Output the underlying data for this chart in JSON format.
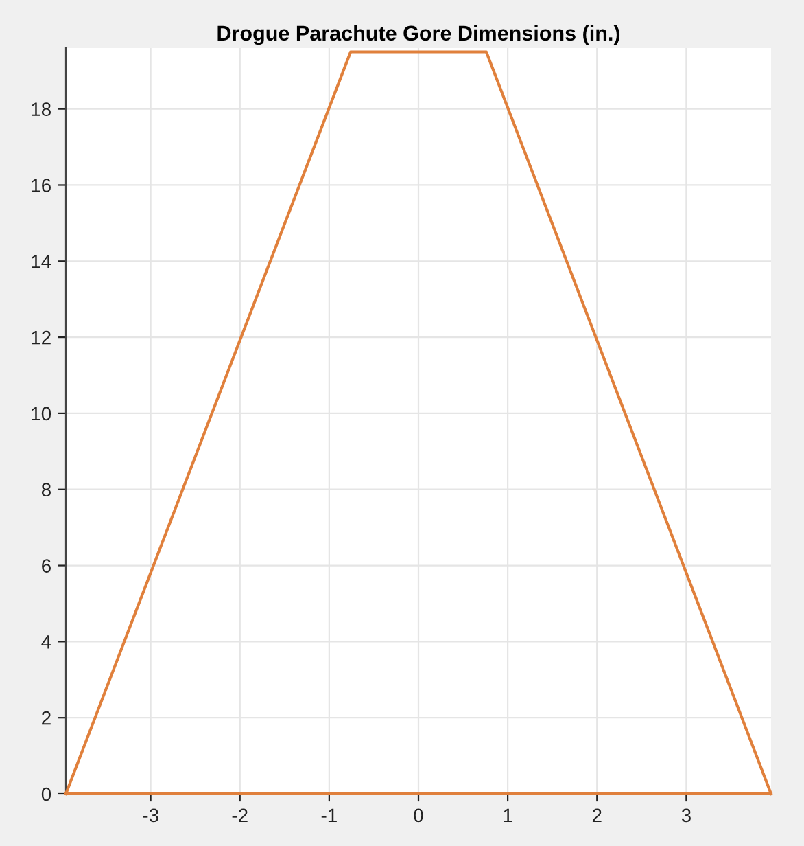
{
  "chart_data": {
    "type": "line",
    "title": "Drogue Parachute Gore Dimensions (in.)",
    "series": [
      {
        "color": "#e0803c",
        "x": [
          -3.95,
          -0.76,
          0.76,
          3.95
        ],
        "values": [
          0,
          19.5,
          19.5,
          0
        ]
      },
      {
        "color": "#e0803c",
        "x": [
          -3.95,
          3.95
        ],
        "values": [
          0,
          0
        ]
      }
    ],
    "xlim": [
      -3.95,
      3.95
    ],
    "xticks": [
      -3,
      -2,
      -1,
      0,
      1,
      2,
      3
    ],
    "ylim": [
      0,
      19.6
    ],
    "yticks": [
      0,
      2,
      4,
      6,
      8,
      10,
      12,
      14,
      16,
      18
    ],
    "grid": true,
    "marker": "none",
    "line_style": "solid"
  }
}
